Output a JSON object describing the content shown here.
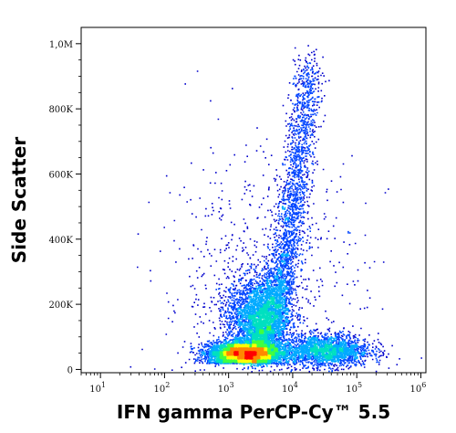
{
  "chart_data": {
    "type": "scatter",
    "plot_style": "flow cytometry density dot plot",
    "xlabel": "IFN gamma PerCP-Cy™ 5.5",
    "ylabel": "Side Scatter",
    "x_scale": "log",
    "y_scale": "linear",
    "xlim": [
      5,
      1200000
    ],
    "ylim": [
      -10000,
      1050000
    ],
    "x_ticks": [
      {
        "value": 10,
        "base": "10",
        "exp": "1"
      },
      {
        "value": 100,
        "base": "10",
        "exp": "2"
      },
      {
        "value": 1000,
        "base": "10",
        "exp": "3"
      },
      {
        "value": 10000,
        "base": "10",
        "exp": "4"
      },
      {
        "value": 100000,
        "base": "10",
        "exp": "5"
      },
      {
        "value": 1000000,
        "base": "10",
        "exp": "6"
      }
    ],
    "y_ticks": [
      {
        "value": 0,
        "label": "0"
      },
      {
        "value": 200000,
        "label": "200K"
      },
      {
        "value": 400000,
        "label": "400K"
      },
      {
        "value": 600000,
        "label": "600K"
      },
      {
        "value": 800000,
        "label": "800K"
      },
      {
        "value": 1000000,
        "label": "1,0M"
      }
    ],
    "density_colors": [
      "#0000cc",
      "#0044ff",
      "#00aaff",
      "#00e0c0",
      "#40ff40",
      "#ffff00",
      "#ff8800",
      "#ff0000"
    ],
    "populations": [
      {
        "name": "main",
        "x_center_log10": 3.25,
        "y_center": 50000,
        "x_spread_log10": 0.28,
        "y_spread": 18000,
        "share": 0.38
      },
      {
        "name": "side-scatter-high",
        "x_center_log10": 3.45,
        "y_center": 170000,
        "x_spread_log10": 0.25,
        "y_spread": 60000,
        "share": 0.18
      },
      {
        "name": "diagonal-tail",
        "x_center_log10": 4.0,
        "y_center": 400000,
        "x_spread_log10": 0.15,
        "y_spread": 200000,
        "share": 0.24
      },
      {
        "name": "positive-tail",
        "x_center_log10": 4.5,
        "y_center": 60000,
        "x_spread_log10": 0.35,
        "y_spread": 25000,
        "share": 0.15
      },
      {
        "name": "scattered",
        "x_center_log10": 3.5,
        "y_center": 250000,
        "x_spread_log10": 0.8,
        "y_spread": 220000,
        "share": 0.05
      }
    ],
    "grid": false,
    "legend": "none"
  }
}
